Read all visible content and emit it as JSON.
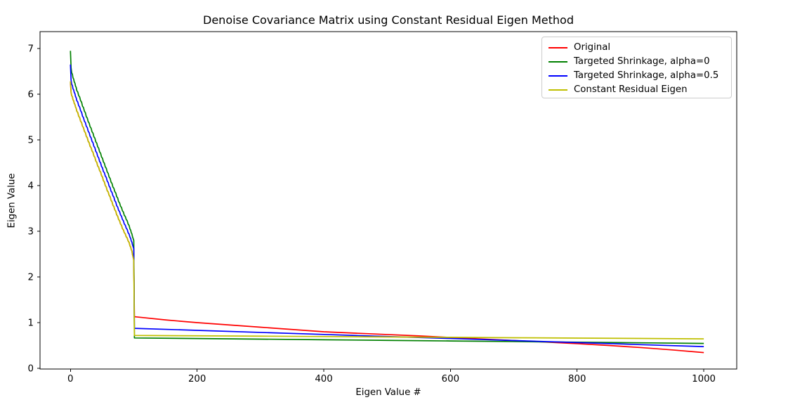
{
  "chart_data": {
    "type": "line",
    "title": "Denoise Covariance Matrix using Constant Residual Eigen Method",
    "xlabel": "Eigen Value #",
    "ylabel": "Eigen Value",
    "xlim": [
      -48,
      1052
    ],
    "ylim": [
      -0.015,
      7.37
    ],
    "xticks": [
      0,
      200,
      400,
      600,
      800,
      1000
    ],
    "yticks": [
      0,
      1,
      2,
      3,
      4,
      5,
      6,
      7
    ],
    "grid": false,
    "legend_position": "upper right",
    "frame_color": "#000000",
    "series": [
      {
        "name": "Original",
        "color": "#ff0000",
        "points": [
          [
            0,
            6.28
          ],
          [
            1,
            6.04
          ],
          [
            2,
            5.97
          ],
          [
            4,
            5.88
          ],
          [
            6,
            5.8
          ],
          [
            8,
            5.72
          ],
          [
            10,
            5.63
          ],
          [
            13,
            5.52
          ],
          [
            16,
            5.41
          ],
          [
            19,
            5.3
          ],
          [
            22,
            5.19
          ],
          [
            25,
            5.08
          ],
          [
            28,
            4.97
          ],
          [
            31,
            4.86
          ],
          [
            34,
            4.76
          ],
          [
            37,
            4.65
          ],
          [
            40,
            4.54
          ],
          [
            43,
            4.43
          ],
          [
            46,
            4.33
          ],
          [
            49,
            4.22
          ],
          [
            52,
            4.11
          ],
          [
            55,
            4.0
          ],
          [
            58,
            3.89
          ],
          [
            61,
            3.79
          ],
          [
            64,
            3.68
          ],
          [
            67,
            3.57
          ],
          [
            70,
            3.47
          ],
          [
            73,
            3.36
          ],
          [
            76,
            3.26
          ],
          [
            79,
            3.16
          ],
          [
            82,
            3.06
          ],
          [
            85,
            2.97
          ],
          [
            88,
            2.88
          ],
          [
            91,
            2.79
          ],
          [
            94,
            2.68
          ],
          [
            96,
            2.6
          ],
          [
            98,
            2.49
          ],
          [
            99,
            2.43
          ],
          [
            100,
            2.36
          ],
          [
            101,
            1.13
          ],
          [
            150,
            1.06
          ],
          [
            200,
            1.0
          ],
          [
            250,
            0.95
          ],
          [
            300,
            0.9
          ],
          [
            350,
            0.85
          ],
          [
            400,
            0.8
          ],
          [
            450,
            0.77
          ],
          [
            500,
            0.74
          ],
          [
            550,
            0.71
          ],
          [
            600,
            0.675
          ],
          [
            650,
            0.642
          ],
          [
            700,
            0.608
          ],
          [
            750,
            0.575
          ],
          [
            800,
            0.54
          ],
          [
            850,
            0.5
          ],
          [
            900,
            0.455
          ],
          [
            950,
            0.403
          ],
          [
            1000,
            0.345
          ]
        ]
      },
      {
        "name": "Targeted Shrinkage, alpha=0",
        "color": "#008000",
        "points": [
          [
            0,
            6.95
          ],
          [
            1,
            6.58
          ],
          [
            2,
            6.47
          ],
          [
            4,
            6.36
          ],
          [
            6,
            6.27
          ],
          [
            8,
            6.18
          ],
          [
            10,
            6.08
          ],
          [
            13,
            5.97
          ],
          [
            16,
            5.86
          ],
          [
            19,
            5.74
          ],
          [
            22,
            5.63
          ],
          [
            25,
            5.51
          ],
          [
            28,
            5.4
          ],
          [
            31,
            5.29
          ],
          [
            34,
            5.18
          ],
          [
            37,
            5.07
          ],
          [
            40,
            4.96
          ],
          [
            43,
            4.85
          ],
          [
            46,
            4.74
          ],
          [
            49,
            4.63
          ],
          [
            52,
            4.52
          ],
          [
            55,
            4.41
          ],
          [
            58,
            4.3
          ],
          [
            61,
            4.19
          ],
          [
            64,
            4.08
          ],
          [
            67,
            3.97
          ],
          [
            70,
            3.87
          ],
          [
            73,
            3.76
          ],
          [
            76,
            3.65
          ],
          [
            79,
            3.55
          ],
          [
            82,
            3.45
          ],
          [
            85,
            3.35
          ],
          [
            88,
            3.26
          ],
          [
            91,
            3.16
          ],
          [
            94,
            3.05
          ],
          [
            96,
            2.97
          ],
          [
            98,
            2.88
          ],
          [
            99,
            2.84
          ],
          [
            100,
            2.8
          ],
          [
            101,
            0.665
          ],
          [
            200,
            0.652
          ],
          [
            300,
            0.639
          ],
          [
            400,
            0.626
          ],
          [
            500,
            0.612
          ],
          [
            600,
            0.599
          ],
          [
            700,
            0.586
          ],
          [
            800,
            0.572
          ],
          [
            900,
            0.559
          ],
          [
            1000,
            0.545
          ]
        ]
      },
      {
        "name": "Targeted Shrinkage, alpha=0.5",
        "color": "#0000ff",
        "points": [
          [
            0,
            6.65
          ],
          [
            1,
            6.31
          ],
          [
            2,
            6.22
          ],
          [
            4,
            6.12
          ],
          [
            6,
            6.04
          ],
          [
            8,
            5.95
          ],
          [
            10,
            5.86
          ],
          [
            13,
            5.75
          ],
          [
            16,
            5.64
          ],
          [
            19,
            5.52
          ],
          [
            22,
            5.41
          ],
          [
            25,
            5.3
          ],
          [
            28,
            5.19
          ],
          [
            31,
            5.08
          ],
          [
            34,
            4.97
          ],
          [
            37,
            4.86
          ],
          [
            40,
            4.75
          ],
          [
            43,
            4.64
          ],
          [
            46,
            4.53
          ],
          [
            49,
            4.42
          ],
          [
            52,
            4.31
          ],
          [
            55,
            4.21
          ],
          [
            58,
            4.1
          ],
          [
            61,
            3.99
          ],
          [
            64,
            3.88
          ],
          [
            67,
            3.78
          ],
          [
            70,
            3.67
          ],
          [
            73,
            3.56
          ],
          [
            76,
            3.46
          ],
          [
            79,
            3.36
          ],
          [
            82,
            3.26
          ],
          [
            85,
            3.16
          ],
          [
            88,
            3.07
          ],
          [
            91,
            2.97
          ],
          [
            94,
            2.87
          ],
          [
            96,
            2.79
          ],
          [
            98,
            2.7
          ],
          [
            99,
            2.66
          ],
          [
            100,
            2.62
          ],
          [
            101,
            0.875
          ],
          [
            200,
            0.831
          ],
          [
            300,
            0.786
          ],
          [
            400,
            0.742
          ],
          [
            500,
            0.697
          ],
          [
            600,
            0.653
          ],
          [
            700,
            0.608
          ],
          [
            800,
            0.564
          ],
          [
            900,
            0.519
          ],
          [
            1000,
            0.475
          ]
        ]
      },
      {
        "name": "Constant Residual Eigen",
        "color": "#bfbf00",
        "points": [
          [
            0,
            6.28
          ],
          [
            1,
            6.04
          ],
          [
            2,
            5.97
          ],
          [
            4,
            5.88
          ],
          [
            6,
            5.8
          ],
          [
            8,
            5.72
          ],
          [
            10,
            5.63
          ],
          [
            13,
            5.52
          ],
          [
            16,
            5.41
          ],
          [
            19,
            5.3
          ],
          [
            22,
            5.19
          ],
          [
            25,
            5.08
          ],
          [
            28,
            4.97
          ],
          [
            31,
            4.86
          ],
          [
            34,
            4.76
          ],
          [
            37,
            4.65
          ],
          [
            40,
            4.54
          ],
          [
            43,
            4.43
          ],
          [
            46,
            4.33
          ],
          [
            49,
            4.22
          ],
          [
            52,
            4.11
          ],
          [
            55,
            4.0
          ],
          [
            58,
            3.89
          ],
          [
            61,
            3.79
          ],
          [
            64,
            3.68
          ],
          [
            67,
            3.57
          ],
          [
            70,
            3.47
          ],
          [
            73,
            3.36
          ],
          [
            76,
            3.26
          ],
          [
            79,
            3.16
          ],
          [
            82,
            3.06
          ],
          [
            85,
            2.97
          ],
          [
            88,
            2.88
          ],
          [
            91,
            2.79
          ],
          [
            94,
            2.68
          ],
          [
            96,
            2.6
          ],
          [
            98,
            2.49
          ],
          [
            99,
            2.43
          ],
          [
            100,
            2.36
          ],
          [
            101,
            0.72
          ],
          [
            200,
            0.712
          ],
          [
            300,
            0.704
          ],
          [
            400,
            0.696
          ],
          [
            500,
            0.687
          ],
          [
            600,
            0.679
          ],
          [
            700,
            0.67
          ],
          [
            800,
            0.662
          ],
          [
            900,
            0.654
          ],
          [
            1000,
            0.645
          ]
        ]
      }
    ]
  }
}
